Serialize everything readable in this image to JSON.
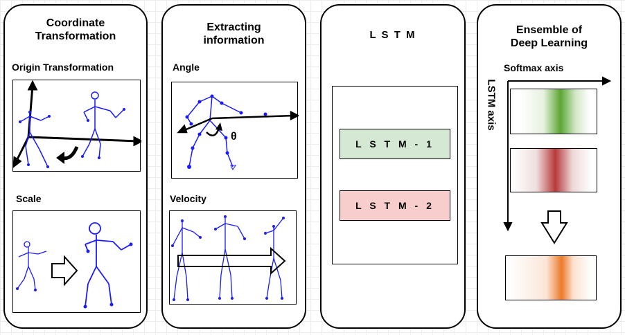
{
  "panel1": {
    "title": "Coordinate\nTransformation",
    "section1_label": "Origin Transformation",
    "section2_label": "Scale"
  },
  "panel2": {
    "title": "Extracting\ninformation",
    "section1_label": "Angle",
    "angle_symbol": "θ",
    "section2_label": "Velocity"
  },
  "panel3": {
    "title": "L S T M",
    "lstm1_label": "L S T M  -  1",
    "lstm2_label": "L S T M  -  2"
  },
  "panel4": {
    "title": "Ensemble of\nDeep Learning",
    "x_axis_label": "Softmax axis",
    "y_axis_label": "LSTM axis"
  },
  "colors": {
    "skeleton": "#1a1aff",
    "lstm1_fill": "#d5e8d4",
    "lstm2_fill": "#f8cecc",
    "heat_green": "#5aa632",
    "heat_red": "#b83a3a",
    "heat_orange": "#ec7a2a"
  },
  "icons": [
    "curved-arrow-icon",
    "hollow-right-arrow-icon",
    "hollow-down-arrow-icon"
  ]
}
